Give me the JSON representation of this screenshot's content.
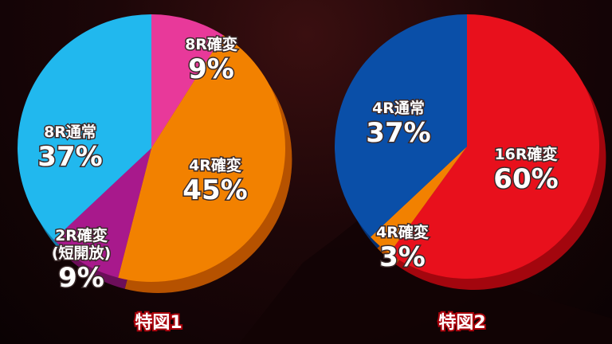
{
  "chart_data": [
    {
      "type": "pie",
      "caption": "特図1",
      "slices": [
        {
          "label": "8R確変",
          "value": 9,
          "percent": "9%",
          "color": "#e8399a",
          "side": "#9c1d66"
        },
        {
          "label": "4R確変",
          "value": 45,
          "percent": "45%",
          "color": "#f28100",
          "side": "#b65200"
        },
        {
          "label": "2R確変\n(短開放)",
          "value": 9,
          "percent": "9%",
          "color": "#a8198c",
          "side": "#6c0e5a"
        },
        {
          "label": "8R通常",
          "value": 37,
          "percent": "37%",
          "color": "#21b8ee",
          "side": "#127aa6"
        }
      ]
    },
    {
      "type": "pie",
      "caption": "特図2",
      "slices": [
        {
          "label": "16R確変",
          "value": 60,
          "percent": "60%",
          "color": "#e8101c",
          "side": "#a3060e"
        },
        {
          "label": "4R確変",
          "value": 3,
          "percent": "3%",
          "color": "#f28100",
          "side": "#b65200"
        },
        {
          "label": "4R通常",
          "value": 37,
          "percent": "37%",
          "color": "#0a4fa8",
          "side": "#063070"
        }
      ]
    }
  ]
}
